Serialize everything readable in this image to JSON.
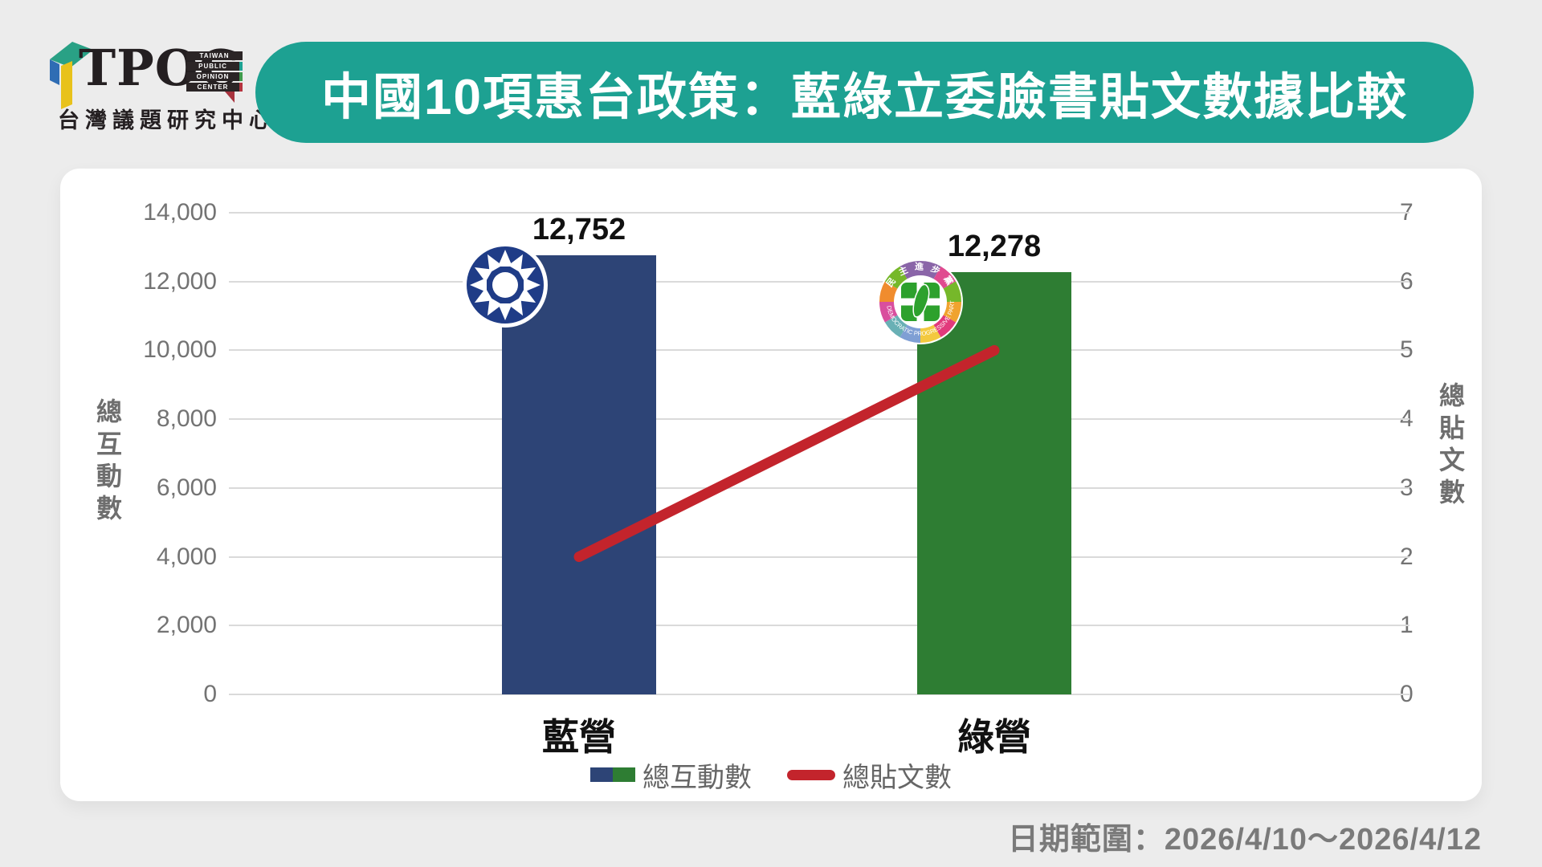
{
  "brand": {
    "logo_text": "TPOC",
    "logo_sub_lines": [
      "TAIWAN",
      "PUBLIC",
      "OPINION",
      "CENTER"
    ],
    "logo_cn": "台灣議題研究中心"
  },
  "header": {
    "title": "中國10項惠台政策：藍綠立委臉書貼文數據比較",
    "banner_color": "#1da192"
  },
  "footer": {
    "date_range": "日期範圍：2026/4/10～2026/4/12"
  },
  "icons": {
    "blue_bar_badge": "kmt-party-emblem",
    "green_bar_badge": "dpp-party-emblem"
  },
  "chart_data": {
    "type": "bar",
    "subtype": "bar+line dual axis",
    "categories": [
      "藍營",
      "綠營"
    ],
    "series": [
      {
        "name": "總互動數",
        "type": "bar",
        "axis": "left",
        "values": [
          12752,
          12278
        ],
        "value_labels": [
          "12,752",
          "12,278"
        ],
        "colors": [
          "#2d4476",
          "#2e7d33"
        ]
      },
      {
        "name": "總貼文數",
        "type": "line",
        "axis": "right",
        "values": [
          2,
          5
        ],
        "color": "#c3242c"
      }
    ],
    "left_axis": {
      "title": "總互動數",
      "range": [
        0,
        14000
      ],
      "ticks": [
        0,
        2000,
        4000,
        6000,
        8000,
        10000,
        12000,
        14000
      ],
      "tick_labels": [
        "0",
        "2,000",
        "4,000",
        "6,000",
        "8,000",
        "10,000",
        "12,000",
        "14,000"
      ]
    },
    "right_axis": {
      "title": "總貼文數",
      "range": [
        0,
        7
      ],
      "ticks": [
        0,
        1,
        2,
        3,
        4,
        5,
        6,
        7
      ],
      "tick_labels": [
        "0",
        "1",
        "2",
        "3",
        "4",
        "5",
        "6",
        "7"
      ]
    },
    "grid": true,
    "legend_position": "bottom-center"
  }
}
